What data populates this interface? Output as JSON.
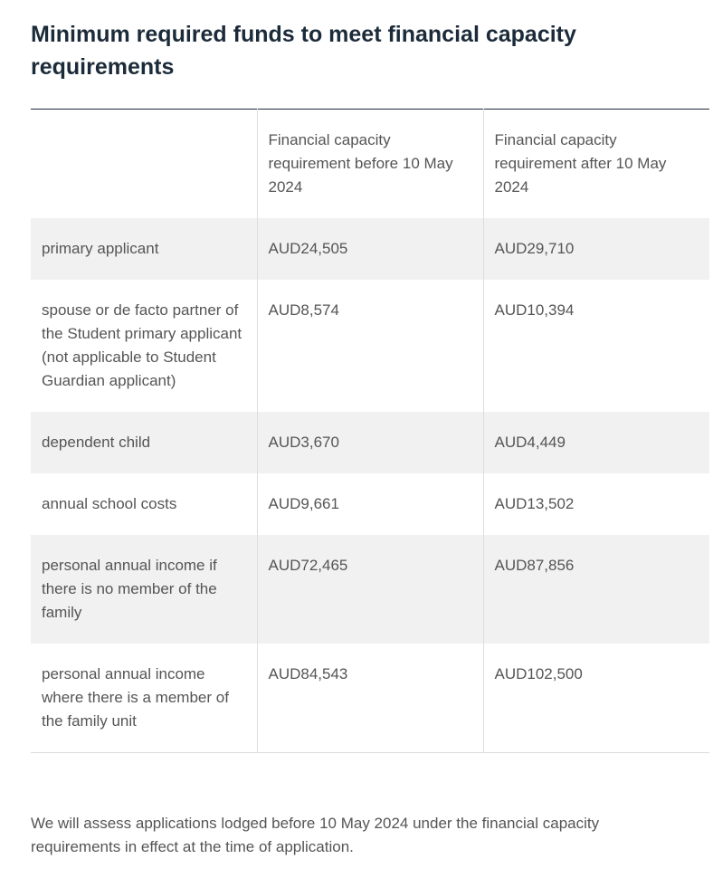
{
  "heading": "Minimum required funds to meet financial capacity requirements",
  "table": {
    "header": [
      "",
      "Financial capacity requirement before 10 May 2024",
      "Financial capacity requirement after 10 May 2024"
    ],
    "rows": [
      [
        "primary applicant",
        "AUD24,505",
        "AUD29,710"
      ],
      [
        "spouse or de facto partner of the Student primary applicant (not applicable to Student Guardian applicant)",
        "AUD8,574",
        "AUD10,394"
      ],
      [
        "dependent child",
        "AUD3,670",
        "AUD4,449"
      ],
      [
        "annual school costs",
        "AUD9,661",
        "AUD13,502"
      ],
      [
        "personal annual income if there is no member of the family",
        "AUD72,465",
        "AUD87,856"
      ],
      [
        "personal annual income where there is a member of the family unit",
        "AUD84,543",
        "AUD102,500"
      ]
    ]
  },
  "note": "We will assess applications lodged before 10 May 2024 under the financial capacity requirements in effect at the time of application."
}
